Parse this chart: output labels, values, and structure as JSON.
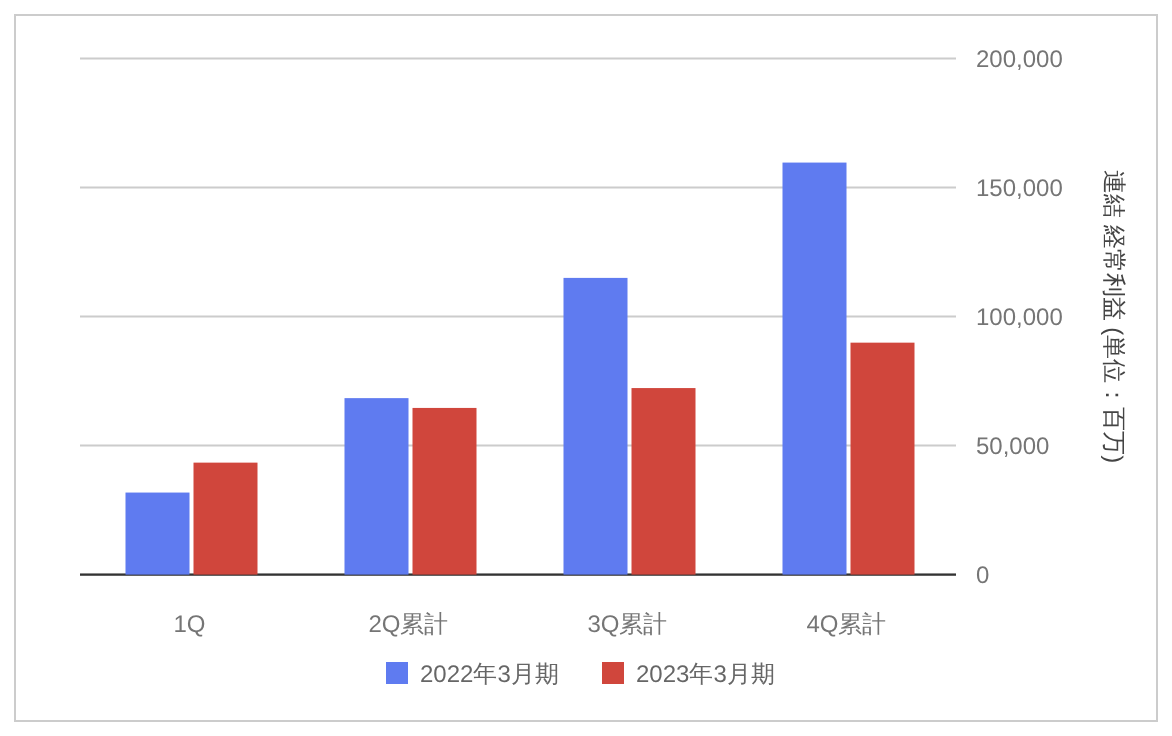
{
  "chart_data": {
    "type": "bar",
    "categories": [
      "1Q",
      "2Q累計",
      "3Q累計",
      "4Q累計"
    ],
    "series": [
      {
        "name": "2022年3月期",
        "color": "#5f7bf0",
        "values": [
          31800,
          68400,
          115000,
          159700
        ]
      },
      {
        "name": "2023年3月期",
        "color": "#d0463c",
        "values": [
          43400,
          64600,
          72300,
          89900
        ]
      }
    ],
    "ylabel": "連結 経常利益 (単位：百万)",
    "ylim": [
      0,
      200000
    ],
    "yticks": [
      {
        "value": 0,
        "label": "0"
      },
      {
        "value": 50000,
        "label": "50,000"
      },
      {
        "value": 100000,
        "label": "100,000"
      },
      {
        "value": 150000,
        "label": "150,000"
      },
      {
        "value": 200000,
        "label": "200,000"
      }
    ],
    "grid": "y",
    "legend": "bottom"
  }
}
